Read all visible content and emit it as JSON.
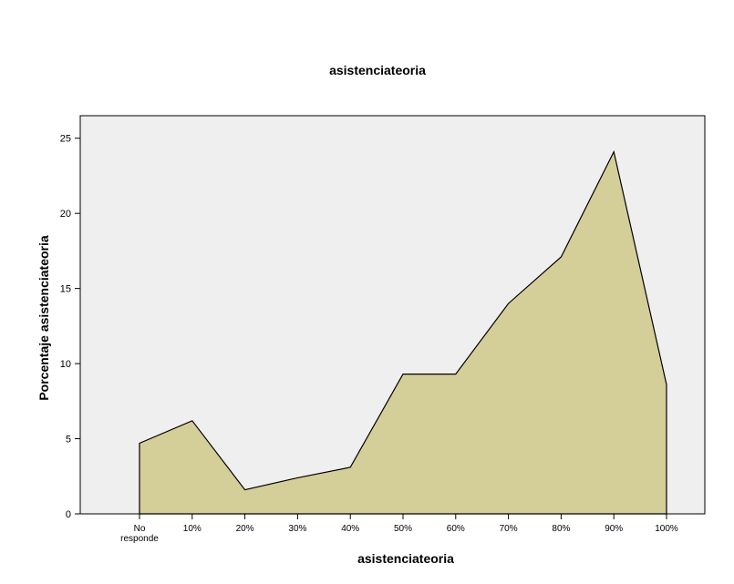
{
  "colors": {
    "page_background": "#ffffff",
    "plot_background": "#efefef",
    "area_fill": "#d4ce99",
    "area_stroke": "#000000",
    "axis": "#000000"
  },
  "chart_data": {
    "type": "area",
    "title": "asistenciateoria",
    "xlabel": "asistenciateoria",
    "ylabel": "Porcentaje asistenciateoria",
    "categories": [
      "No\nresponde",
      "10%",
      "20%",
      "30%",
      "40%",
      "50%",
      "60%",
      "70%",
      "80%",
      "90%",
      "100%"
    ],
    "values": [
      4.7,
      6.2,
      1.6,
      2.4,
      3.1,
      9.3,
      9.3,
      14.0,
      17.1,
      24.1,
      8.6
    ],
    "ylim": [
      0,
      26.5
    ],
    "yticks": [
      0,
      5,
      10,
      15,
      20,
      25
    ],
    "grid": false,
    "legend": "none"
  }
}
